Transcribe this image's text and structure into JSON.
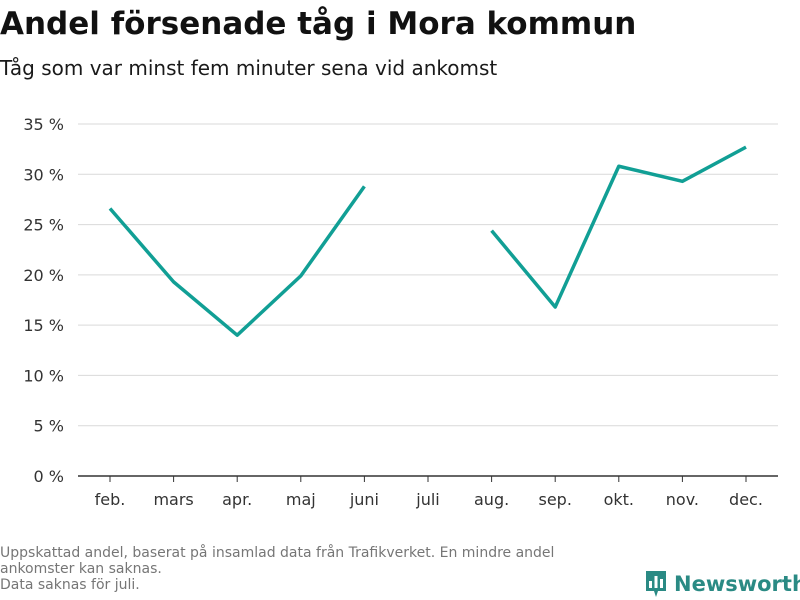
{
  "title": "Andel försenade tåg i Mora kommun",
  "subtitle": "Tåg som var minst fem minuter sena vid ankomst",
  "footnote": {
    "lines": [
      "Uppskattad andel, baserat på insamlad data från Trafikverket. En mindre andel",
      "ankomster kan saknas.",
      "Data saknas för juli."
    ]
  },
  "brand": {
    "name": "Newsworthy",
    "icon": "bar-chart-bubble-icon"
  },
  "colors": {
    "line": "#119f95",
    "grid": "#d9d9d9",
    "axis": "#333333",
    "brand": "#2a8a84"
  },
  "chart_data": {
    "type": "line",
    "categories": [
      "feb.",
      "mars",
      "apr.",
      "maj",
      "juni",
      "juli",
      "aug.",
      "sep.",
      "okt.",
      "nov.",
      "dec."
    ],
    "series": [
      {
        "values": [
          26.6,
          19.3,
          14.0,
          19.9,
          28.8,
          null,
          24.4,
          16.8,
          30.8,
          29.3,
          32.7
        ]
      }
    ],
    "ylim": [
      0,
      35
    ],
    "yticks": [
      0,
      5,
      10,
      15,
      20,
      25,
      30,
      35
    ],
    "ytick_labels": [
      "0 %",
      "5 %",
      "10 %",
      "15 %",
      "20 %",
      "25 %",
      "30 %",
      "35 %"
    ],
    "grid": true,
    "legend": false
  }
}
